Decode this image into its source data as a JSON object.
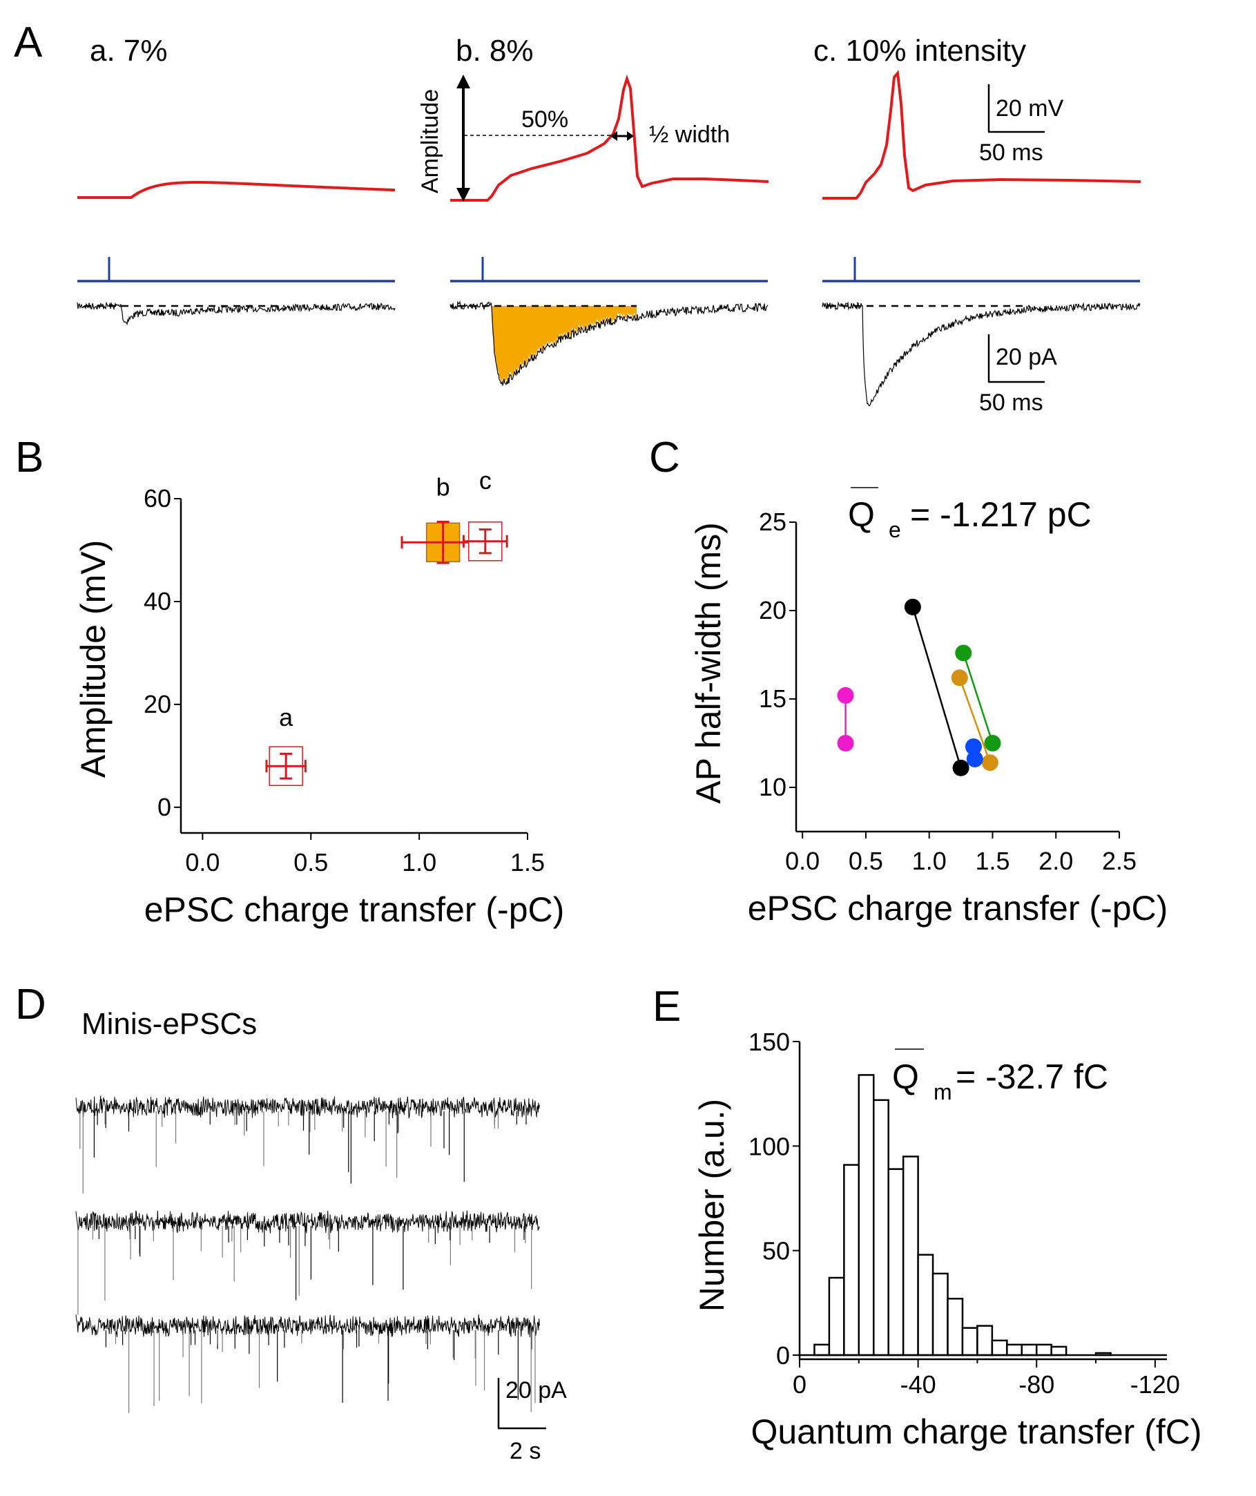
{
  "figure": {
    "panel_labels": [
      "A",
      "B",
      "C",
      "D",
      "E"
    ]
  },
  "panel_a": {
    "conditions": [
      {
        "id": "a",
        "label": "a. 7%",
        "spike": false
      },
      {
        "id": "b",
        "label": "b. 8%",
        "spike": true
      },
      {
        "id": "c",
        "label": "c. 10% intensity",
        "spike": true
      }
    ],
    "annotations": {
      "amplitude": "Amplitude",
      "fifty_percent": "50%",
      "half_width": "½ width"
    },
    "voltage_scale": {
      "y_label": "20 mV",
      "x_label": "50 ms"
    },
    "current_scale": {
      "y_label": "20 pA",
      "x_label": "50 ms"
    },
    "colors": {
      "voltage_trace": "#e31a1c",
      "stim_trace": "#1f3fa8",
      "current_trace": "#000000",
      "charge_fill": "#f5a800"
    }
  },
  "chart_data": [
    {
      "panel": "B",
      "type": "scatter",
      "xlabel": "ePSC charge transfer (-pC)",
      "ylabel": "Amplitude (mV)",
      "xlim": [
        -0.1,
        1.5
      ],
      "ylim": [
        -5,
        60
      ],
      "xticks": [
        0.0,
        0.5,
        1.0,
        1.5
      ],
      "xtick_labels": [
        "0.0",
        "0.5",
        "1.0",
        "1.5"
      ],
      "yticks": [
        0,
        20,
        40,
        60
      ],
      "ytick_labels": [
        "0",
        "20",
        "40",
        "60"
      ],
      "grid": false,
      "points": [
        {
          "label": "a",
          "x": 0.385,
          "y": 8.0,
          "xerr": 0.09,
          "yerr": 2.4,
          "filled": false
        },
        {
          "label": "b",
          "x": 1.11,
          "y": 51.5,
          "xerr": 0.19,
          "yerr": 4.0,
          "filled": true
        },
        {
          "label": "c",
          "x": 1.305,
          "y": 51.7,
          "xerr": 0.1,
          "yerr": 2.3,
          "filled": false
        }
      ],
      "colors": {
        "marker_edge": "#d7191c",
        "fill": "#f5a800"
      }
    },
    {
      "panel": "C",
      "type": "scatter",
      "xlabel": "ePSC charge transfer (-pC)",
      "ylabel": "AP half-width (ms)",
      "annotation": {
        "symbol": "Q",
        "subscript": "e",
        "text": "= -1.217 pC"
      },
      "xlim": [
        -0.05,
        2.5
      ],
      "ylim": [
        7.5,
        25
      ],
      "xticks": [
        0.0,
        0.5,
        1.0,
        1.5,
        2.0,
        2.5
      ],
      "xtick_labels": [
        "0.0",
        "0.5",
        "1.0",
        "1.5",
        "2.0",
        "2.5"
      ],
      "yticks": [
        10,
        15,
        20,
        25
      ],
      "ytick_labels": [
        "10",
        "15",
        "20",
        "25"
      ],
      "grid": false,
      "series": [
        {
          "name": "cell-magenta",
          "color": "#f01acd",
          "points": [
            {
              "x": 0.34,
              "y": 15.2
            },
            {
              "x": 0.34,
              "y": 12.5
            }
          ]
        },
        {
          "name": "cell-black",
          "color": "#000000",
          "points": [
            {
              "x": 0.87,
              "y": 20.2
            },
            {
              "x": 1.25,
              "y": 11.1
            }
          ]
        },
        {
          "name": "cell-green",
          "color": "#139a13",
          "points": [
            {
              "x": 1.27,
              "y": 17.6
            },
            {
              "x": 1.5,
              "y": 12.5
            }
          ]
        },
        {
          "name": "cell-gold",
          "color": "#d4900f",
          "points": [
            {
              "x": 1.24,
              "y": 16.2
            },
            {
              "x": 1.48,
              "y": 11.4
            }
          ]
        },
        {
          "name": "cell-blue",
          "color": "#0a4aff",
          "points": [
            {
              "x": 1.35,
              "y": 12.3
            },
            {
              "x": 1.36,
              "y": 11.6
            }
          ]
        }
      ]
    },
    {
      "panel": "E",
      "type": "bar",
      "title": "",
      "xlabel": "Quantum charge transfer (fC)",
      "ylabel": "Number (a.u.)",
      "annotation": {
        "symbol": "Q",
        "subscript": "m",
        "text": "= -32.7 fC"
      },
      "bin_width": 5,
      "bin_starts": [
        0,
        5,
        10,
        15,
        20,
        25,
        30,
        35,
        40,
        45,
        50,
        55,
        60,
        65,
        70,
        75,
        80,
        85,
        90,
        95,
        100,
        105,
        110,
        115,
        120
      ],
      "values": [
        0,
        5,
        37,
        91,
        134,
        122,
        89,
        95,
        48,
        39,
        27,
        13,
        14,
        7,
        5,
        5,
        5,
        4,
        0,
        0,
        1,
        0,
        0,
        0,
        0
      ],
      "xlim": [
        0,
        124
      ],
      "ylim": [
        0,
        150
      ],
      "xticks": [
        0,
        40,
        80,
        120
      ],
      "xtick_labels": [
        "0",
        "-40",
        "-80",
        "-120"
      ],
      "yticks": [
        0,
        50,
        100,
        150
      ],
      "ytick_labels": [
        "0",
        "50",
        "100",
        "150"
      ],
      "grid": false
    }
  ],
  "panel_d": {
    "title": "Minis-ePSCs",
    "sweeps": 3,
    "scale": {
      "y_label": "20 pA",
      "x_label": "2 s"
    }
  }
}
